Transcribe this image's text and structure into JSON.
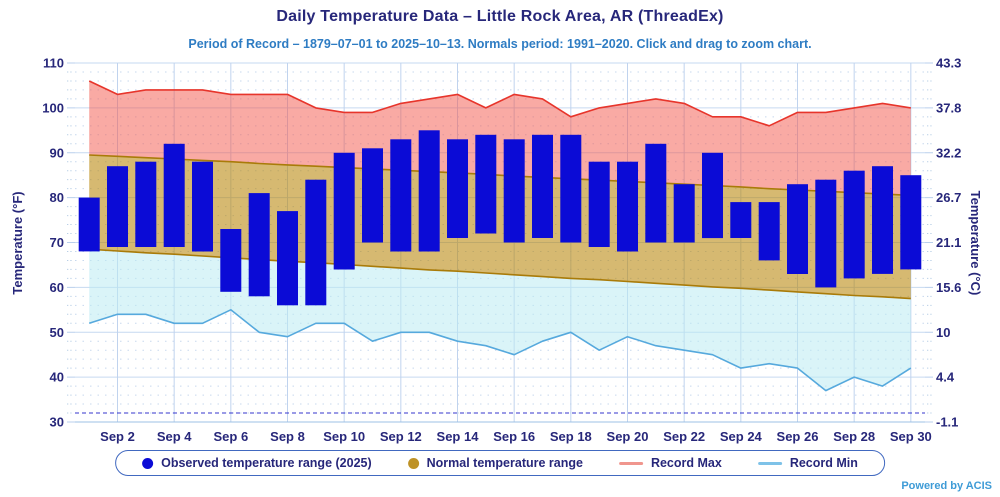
{
  "title": "Daily Temperature Data – Little Rock Area, AR (ThreadEx)",
  "subtitle": "Period of Record – 1879–07–01 to 2025–10–13. Normals period: 1991–2020. Click and drag to zoom chart.",
  "powered_by": "Powered by ACIS",
  "legend": {
    "items": [
      {
        "label": "Observed temperature range (2025)",
        "marker": "circle",
        "color": "#0B0BD6"
      },
      {
        "label": "Normal temperature range",
        "marker": "circle",
        "color": "#BE9226"
      },
      {
        "label": "Record Max",
        "marker": "line",
        "color": "#F0968E"
      },
      {
        "label": "Record Min",
        "marker": "line",
        "color": "#7EC2E8"
      }
    ]
  },
  "chart_data": {
    "type": "bar",
    "subtype": "columnrange bars + normal arearange band + record max/min area lines",
    "title": "Daily Temperature Data – Little Rock Area, AR (ThreadEx)",
    "xlabel": "",
    "ylabel_left": "Temperature (°F)",
    "ylabel_right": "Temperature (°C)",
    "ylim_f": [
      30,
      110
    ],
    "ylim_c": [
      -1.1,
      43.3
    ],
    "grid": true,
    "legend_position": "bottom",
    "freezing_reference_line_f": 32,
    "categories": [
      "Sep 1",
      "Sep 2",
      "Sep 3",
      "Sep 4",
      "Sep 5",
      "Sep 6",
      "Sep 7",
      "Sep 8",
      "Sep 9",
      "Sep 10",
      "Sep 11",
      "Sep 12",
      "Sep 13",
      "Sep 14",
      "Sep 15",
      "Sep 16",
      "Sep 17",
      "Sep 18",
      "Sep 19",
      "Sep 20",
      "Sep 21",
      "Sep 22",
      "Sep 23",
      "Sep 24",
      "Sep 25",
      "Sep 26",
      "Sep 27",
      "Sep 28",
      "Sep 29",
      "Sep 30"
    ],
    "x_ticks": [
      {
        "day": 2,
        "label": "Sep 2"
      },
      {
        "day": 4,
        "label": "Sep 4"
      },
      {
        "day": 6,
        "label": "Sep 6"
      },
      {
        "day": 8,
        "label": "Sep 8"
      },
      {
        "day": 10,
        "label": "Sep 10"
      },
      {
        "day": 12,
        "label": "Sep 12"
      },
      {
        "day": 14,
        "label": "Sep 14"
      },
      {
        "day": 16,
        "label": "Sep 16"
      },
      {
        "day": 18,
        "label": "Sep 18"
      },
      {
        "day": 20,
        "label": "Sep 20"
      },
      {
        "day": 22,
        "label": "Sep 22"
      },
      {
        "day": 24,
        "label": "Sep 24"
      },
      {
        "day": 26,
        "label": "Sep 26"
      },
      {
        "day": 28,
        "label": "Sep 28"
      },
      {
        "day": 30,
        "label": "Sep 30"
      }
    ],
    "y_ticks": [
      {
        "f": 110,
        "c": "43.3"
      },
      {
        "f": 100,
        "c": "37.8"
      },
      {
        "f": 90,
        "c": "32.2"
      },
      {
        "f": 80,
        "c": "26.7"
      },
      {
        "f": 70,
        "c": "21.1"
      },
      {
        "f": 60,
        "c": "15.6"
      },
      {
        "f": 50,
        "c": "10"
      },
      {
        "f": 40,
        "c": "4.4"
      },
      {
        "f": 30,
        "c": "-1.1"
      }
    ],
    "series": [
      {
        "name": "Observed temperature range (2025)",
        "type": "columnrange",
        "color": "#0B0BD6",
        "high": [
          80,
          87,
          88,
          92,
          88,
          73,
          81,
          77,
          84,
          90,
          91,
          93,
          95,
          93,
          94,
          93,
          94,
          94,
          88,
          88,
          92,
          83,
          90,
          79,
          79,
          83,
          84,
          86,
          87,
          85
        ],
        "low": [
          68,
          69,
          69,
          69,
          68,
          59,
          58,
          56,
          56,
          64,
          70,
          68,
          68,
          71,
          72,
          70,
          71,
          70,
          69,
          68,
          70,
          70,
          71,
          71,
          66,
          63,
          60,
          62,
          63,
          64
        ]
      },
      {
        "name": "Normal temperature range",
        "type": "arearange",
        "fill": "#B8860B",
        "line": "#A97B09",
        "high": [
          89.5,
          89.2,
          88.9,
          88.6,
          88.3,
          88,
          87.6,
          87.3,
          87,
          86.7,
          86.4,
          86.1,
          85.8,
          85.5,
          85.2,
          84.8,
          84.5,
          84.2,
          83.9,
          83.6,
          83.3,
          83,
          82.7,
          82.4,
          82,
          81.7,
          81.4,
          81.1,
          80.8,
          80.5
        ],
        "low": [
          68.5,
          68.1,
          67.7,
          67.4,
          67,
          66.6,
          66.2,
          65.8,
          65.5,
          65.1,
          64.7,
          64.3,
          63.9,
          63.6,
          63.2,
          62.8,
          62.4,
          62,
          61.7,
          61.3,
          60.9,
          60.5,
          60.1,
          59.8,
          59.4,
          59,
          58.6,
          58.2,
          57.9,
          57.5
        ]
      },
      {
        "name": "Record Max",
        "type": "line",
        "line": "#E7352B",
        "fill": "#F4564A",
        "values": [
          106,
          103,
          104,
          104,
          104,
          103,
          103,
          103,
          100,
          99,
          99,
          101,
          102,
          103,
          100,
          103,
          102,
          98,
          100,
          101,
          102,
          101,
          98,
          98,
          96,
          99,
          99,
          100,
          101,
          100
        ]
      },
      {
        "name": "Record Min",
        "type": "line",
        "line": "#56A9DD",
        "fill": "#BCEBF2",
        "values": [
          52,
          54,
          54,
          52,
          52,
          55,
          50,
          49,
          52,
          52,
          48,
          50,
          50,
          48,
          47,
          45,
          48,
          50,
          46,
          49,
          47,
          46,
          45,
          42,
          43,
          42,
          37,
          40,
          38,
          42
        ]
      }
    ]
  }
}
